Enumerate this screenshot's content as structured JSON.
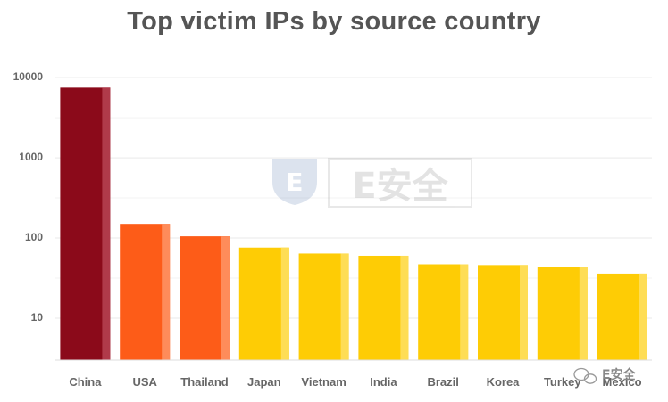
{
  "chart_data": {
    "type": "bar",
    "title": "Top victim IPs by source country",
    "categories": [
      "China",
      "USA",
      "Thailand",
      "Japan",
      "Vietnam",
      "India",
      "Brazil",
      "Korea",
      "Turkey",
      "Mexico"
    ],
    "values": [
      7500,
      150,
      105,
      76,
      64,
      60,
      47,
      46,
      44,
      36
    ],
    "yscale": "log",
    "ylim": [
      3,
      12000
    ],
    "yticks": [
      {
        "value": 10,
        "label": "10"
      },
      {
        "value": 100,
        "label": "100"
      },
      {
        "value": 1000,
        "label": "1000"
      },
      {
        "value": 10000,
        "label": "10000"
      }
    ],
    "grid": true,
    "bar_colors": [
      "#8b0a1a",
      "#fd5c18",
      "#fd5c18",
      "#fecc05",
      "#fecc05",
      "#fecc05",
      "#fecc05",
      "#fecc05",
      "#fecc05",
      "#fecc05"
    ],
    "bar_highlight_colors": [
      "#b03a4a",
      "#fe8c5a",
      "#fe8c5a",
      "#fedd55",
      "#fedd55",
      "#fedd55",
      "#fedd55",
      "#fedd55",
      "#fedd55",
      "#fedd55"
    ]
  },
  "watermark": {
    "center_text": "E安全",
    "corner_text": "E安全",
    "center_icon": "e-logo-icon",
    "corner_icon": "wechat-icon"
  }
}
